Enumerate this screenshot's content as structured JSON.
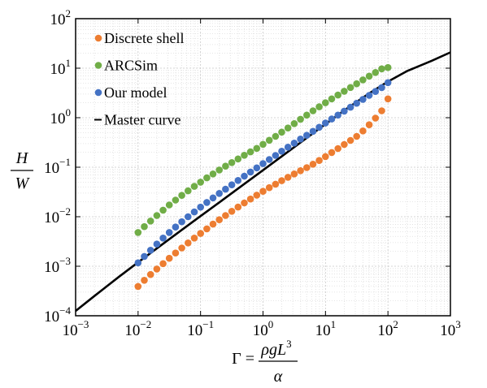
{
  "chart_data": {
    "type": "scatter",
    "xscale": "log",
    "yscale": "log",
    "xlim": [
      0.001,
      1000
    ],
    "ylim": [
      0.0001,
      100
    ],
    "grid": true,
    "legend_position": "top-left",
    "x_ticks": [
      {
        "value": 0.001,
        "base": "10",
        "exp": "−3"
      },
      {
        "value": 0.01,
        "base": "10",
        "exp": "−2"
      },
      {
        "value": 0.1,
        "base": "10",
        "exp": "−1"
      },
      {
        "value": 1,
        "base": "10",
        "exp": "0"
      },
      {
        "value": 10,
        "base": "10",
        "exp": "1"
      },
      {
        "value": 100,
        "base": "10",
        "exp": "2"
      },
      {
        "value": 1000,
        "base": "10",
        "exp": "3"
      }
    ],
    "y_ticks": [
      {
        "value": 0.0001,
        "base": "10",
        "exp": "−4"
      },
      {
        "value": 0.001,
        "base": "10",
        "exp": "−3"
      },
      {
        "value": 0.01,
        "base": "10",
        "exp": "−2"
      },
      {
        "value": 0.1,
        "base": "10",
        "exp": "−1"
      },
      {
        "value": 1,
        "base": "10",
        "exp": "0"
      },
      {
        "value": 10,
        "base": "10",
        "exp": "1"
      },
      {
        "value": 100,
        "base": "10",
        "exp": "2"
      }
    ],
    "ylabel": {
      "numerator": "H",
      "denominator": "W"
    },
    "xlabel": {
      "lhs": "Γ =",
      "numerator": "ρgL",
      "numerator_exp": "3",
      "denominator": "α"
    },
    "series": [
      {
        "name": "Discrete shell",
        "kind": "markers",
        "color": "#ed7d31",
        "x": [
          0.01,
          0.01259,
          0.01585,
          0.01995,
          0.02512,
          0.03162,
          0.03981,
          0.05012,
          0.0631,
          0.07943,
          0.1,
          0.1259,
          0.1585,
          0.1995,
          0.2512,
          0.3162,
          0.3981,
          0.5012,
          0.631,
          0.7943,
          1,
          1.259,
          1.585,
          1.995,
          2.512,
          3.162,
          3.981,
          5.012,
          6.31,
          7.943,
          10,
          12.59,
          15.85,
          19.95,
          25.12,
          31.62,
          39.81,
          50.12,
          63.1,
          79.43,
          100
        ],
        "y": [
          0.00039,
          0.00052,
          0.00068,
          0.00088,
          0.00113,
          0.00145,
          0.00185,
          0.00234,
          0.00295,
          0.0037,
          0.0046,
          0.0057,
          0.0071,
          0.0087,
          0.0106,
          0.0129,
          0.0157,
          0.019,
          0.0228,
          0.0273,
          0.0326,
          0.0386,
          0.0455,
          0.0535,
          0.0627,
          0.0731,
          0.0849,
          0.098,
          0.115,
          0.137,
          0.164,
          0.198,
          0.238,
          0.288,
          0.348,
          0.42,
          0.54,
          0.72,
          0.98,
          1.38,
          2.4
        ]
      },
      {
        "name": "ARCSim",
        "kind": "markers",
        "color": "#70ad47",
        "x": [
          0.01,
          0.01259,
          0.01585,
          0.01995,
          0.02512,
          0.03162,
          0.03981,
          0.05012,
          0.0631,
          0.07943,
          0.1,
          0.1259,
          0.1585,
          0.1995,
          0.2512,
          0.3162,
          0.3981,
          0.5012,
          0.631,
          0.7943,
          1,
          1.259,
          1.585,
          1.995,
          2.512,
          3.162,
          3.981,
          5.012,
          6.31,
          7.943,
          10,
          12.59,
          15.85,
          19.95,
          25.12,
          31.62,
          39.81,
          50.12,
          63.1,
          79.43,
          100
        ],
        "y": [
          0.0048,
          0.0063,
          0.0082,
          0.0106,
          0.0136,
          0.0173,
          0.0217,
          0.027,
          0.0334,
          0.041,
          0.05,
          0.061,
          0.073,
          0.088,
          0.105,
          0.124,
          0.147,
          0.174,
          0.204,
          0.24,
          0.29,
          0.35,
          0.42,
          0.51,
          0.62,
          0.76,
          0.93,
          1.13,
          1.38,
          1.66,
          2.0,
          2.4,
          2.87,
          3.42,
          4.07,
          4.84,
          5.8,
          6.9,
          8.2,
          9.7,
          10.3
        ]
      },
      {
        "name": "Our model",
        "kind": "markers",
        "color": "#4472c4",
        "x": [
          0.01,
          0.01259,
          0.01585,
          0.01995,
          0.02512,
          0.03162,
          0.03981,
          0.05012,
          0.0631,
          0.07943,
          0.1,
          0.1259,
          0.1585,
          0.1995,
          0.2512,
          0.3162,
          0.3981,
          0.5012,
          0.631,
          0.7943,
          1,
          1.259,
          1.585,
          1.995,
          2.512,
          3.162,
          3.981,
          5.012,
          6.31,
          7.943,
          10,
          12.59,
          15.85,
          19.95,
          25.12,
          31.62,
          39.81,
          50.12,
          63.1,
          79.43,
          100
        ],
        "y": [
          0.00117,
          0.00158,
          0.0021,
          0.0028,
          0.0037,
          0.0048,
          0.0062,
          0.0079,
          0.01,
          0.0125,
          0.0156,
          0.0194,
          0.024,
          0.0295,
          0.036,
          0.044,
          0.054,
          0.066,
          0.08,
          0.097,
          0.118,
          0.143,
          0.173,
          0.21,
          0.254,
          0.307,
          0.37,
          0.44,
          0.53,
          0.64,
          0.78,
          0.94,
          1.13,
          1.36,
          1.63,
          1.96,
          2.35,
          2.82,
          3.38,
          4.05,
          5.1
        ]
      },
      {
        "name": "Master curve",
        "kind": "line",
        "color": "#000000",
        "x": [
          0.001,
          0.002,
          0.005,
          0.01,
          0.02,
          0.05,
          0.1,
          0.2,
          0.5,
          1,
          2,
          5,
          10,
          20,
          50,
          100,
          200,
          500,
          1000
        ],
        "y": [
          0.000125,
          0.00025,
          0.00062,
          0.0012,
          0.0023,
          0.0054,
          0.0103,
          0.0195,
          0.0457,
          0.0871,
          0.166,
          0.389,
          0.741,
          1.41,
          3.09,
          5.37,
          8.7,
          14.1,
          20.9
        ]
      }
    ]
  }
}
